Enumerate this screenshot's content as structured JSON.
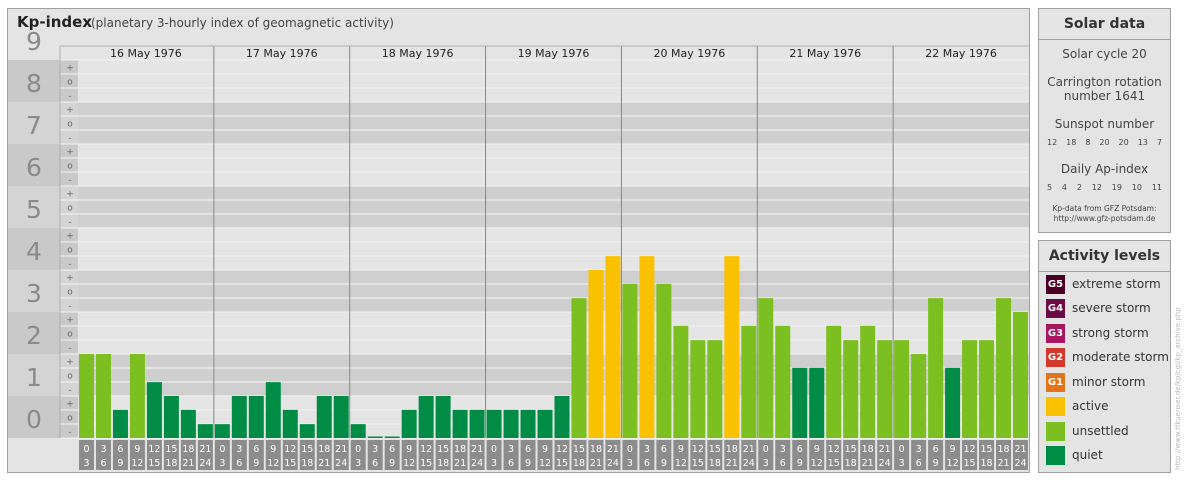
{
  "header": {
    "title": "Kp-index",
    "subtitle": "(planetary 3-hourly index of geomagnetic activity)"
  },
  "chart_data": {
    "type": "bar",
    "title": "Kp-index",
    "subtitle": "(planetary 3-hourly index of geomagnetic activity)",
    "days": [
      "16 May 1976",
      "17 May 1976",
      "18 May 1976",
      "19 May 1976",
      "20 May 1976",
      "21 May 1976",
      "22 May 1976"
    ],
    "interval_start_hours": [
      "0",
      "3",
      "6",
      "9",
      "12",
      "15",
      "18",
      "21"
    ],
    "interval_end_hours": [
      "3",
      "6",
      "9",
      "12",
      "15",
      "18",
      "21",
      "24"
    ],
    "values": [
      [
        2.0,
        2.0,
        0.67,
        2.0,
        1.33,
        1.0,
        0.67,
        0.33
      ],
      [
        0.33,
        1.0,
        1.0,
        1.33,
        0.67,
        0.33,
        1.0,
        1.0
      ],
      [
        0.33,
        0.0,
        0.0,
        0.67,
        1.0,
        1.0,
        0.67,
        0.67
      ],
      [
        0.67,
        0.67,
        0.67,
        0.67,
        1.0,
        3.33,
        4.0,
        4.33
      ],
      [
        3.67,
        4.33,
        3.67,
        2.67,
        2.33,
        2.33,
        4.33,
        2.67
      ],
      [
        3.33,
        2.67,
        1.67,
        1.67,
        2.67,
        2.33,
        2.67,
        2.33
      ],
      [
        2.33,
        2.0,
        3.33,
        1.67,
        2.33,
        2.33,
        3.33,
        3.0
      ]
    ],
    "y_ticks": [
      "0",
      "1",
      "2",
      "3",
      "4",
      "5",
      "6",
      "7",
      "8",
      "9"
    ],
    "y_subticks": [
      "-",
      "o",
      "+"
    ],
    "ylim": [
      0,
      9
    ],
    "color_rules": {
      "quiet_below": 2,
      "unsettled_below": 4,
      "active_below": 5
    },
    "colors": {
      "quiet": "#008c45",
      "unsettled": "#7cbf21",
      "active": "#f9c100",
      "minor_storm": "#e2751a",
      "moderate_storm": "#d2382c",
      "strong_storm": "#a8165f",
      "severe_storm": "#6c0b45",
      "extreme_storm": "#4a0022"
    },
    "grid": true
  },
  "solar": {
    "title": "Solar data",
    "cycle": "Solar cycle 20",
    "carrington_line1": "Carrington rotation",
    "carrington_line2": "number 1641",
    "sunspot_title": "Sunspot number",
    "sunspot_values": [
      "12",
      "18",
      "8",
      "20",
      "20",
      "13",
      "7"
    ],
    "ap_title": "Daily Ap-index",
    "ap_values": [
      "5",
      "4",
      "2",
      "12",
      "19",
      "10",
      "11"
    ],
    "credit_line1": "Kp-data from GFZ Potsdam:",
    "credit_line2": "http://www.gfz-potsdam.de"
  },
  "activity": {
    "title": "Activity levels",
    "levels": [
      {
        "badge": "G5",
        "label": "extreme storm",
        "color": "#4a0022"
      },
      {
        "badge": "G4",
        "label": "severe storm",
        "color": "#6c0b45"
      },
      {
        "badge": "G3",
        "label": "strong storm",
        "color": "#a8165f"
      },
      {
        "badge": "G2",
        "label": "moderate storm",
        "color": "#d2382c"
      },
      {
        "badge": "G1",
        "label": "minor storm",
        "color": "#e2751a"
      },
      {
        "badge": "",
        "label": "active",
        "color": "#f9c100"
      },
      {
        "badge": "",
        "label": "unsettled",
        "color": "#7cbf21"
      },
      {
        "badge": "",
        "label": "quiet",
        "color": "#008c45"
      }
    ]
  },
  "watermark": "http://www.tfkuenser.de/kp/cgi/kp_archive.php"
}
